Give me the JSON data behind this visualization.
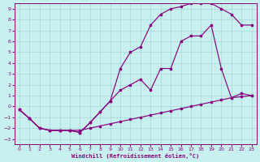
{
  "xlabel": "Windchill (Refroidissement éolien,°C)",
  "background_color": "#c8f0ee",
  "grid_color": "#a0d8d8",
  "line_color": "#880080",
  "xlim": [
    -0.5,
    23.5
  ],
  "ylim": [
    -3.5,
    9.5
  ],
  "xticks": [
    0,
    1,
    2,
    3,
    4,
    5,
    6,
    7,
    8,
    9,
    10,
    11,
    12,
    13,
    14,
    15,
    16,
    17,
    18,
    19,
    20,
    21,
    22,
    23
  ],
  "yticks": [
    -3,
    -2,
    -1,
    0,
    1,
    2,
    3,
    4,
    5,
    6,
    7,
    8,
    9
  ],
  "line1_x": [
    0,
    1,
    2,
    3,
    4,
    5,
    6,
    7,
    8,
    9,
    10,
    11,
    12,
    13,
    14,
    15,
    16,
    17,
    18,
    19,
    20,
    21,
    22,
    23
  ],
  "line1_y": [
    -0.3,
    -1.1,
    -2.0,
    -2.2,
    -2.2,
    -2.2,
    -2.2,
    -2.0,
    -1.8,
    -1.6,
    -1.4,
    -1.2,
    -1.0,
    -0.8,
    -0.6,
    -0.4,
    -0.2,
    0.0,
    0.2,
    0.4,
    0.6,
    0.8,
    0.9,
    1.0
  ],
  "line2_x": [
    0,
    1,
    2,
    3,
    4,
    5,
    6,
    7,
    8,
    9,
    10,
    11,
    12,
    13,
    14,
    15,
    16,
    17,
    18,
    19,
    20,
    21,
    22,
    23
  ],
  "line2_y": [
    -0.3,
    -1.1,
    -2.0,
    -2.2,
    -2.2,
    -2.2,
    -2.4,
    -1.5,
    -0.5,
    0.5,
    1.5,
    2.0,
    2.5,
    1.5,
    3.5,
    3.5,
    6.0,
    6.5,
    6.5,
    7.5,
    3.5,
    0.8,
    1.2,
    1.0
  ],
  "line3_x": [
    0,
    1,
    2,
    3,
    4,
    5,
    6,
    7,
    8,
    9,
    10,
    11,
    12,
    13,
    14,
    15,
    16,
    17,
    18,
    19,
    20,
    21,
    22,
    23
  ],
  "line3_y": [
    -0.3,
    -1.1,
    -2.0,
    -2.2,
    -2.2,
    -2.2,
    -2.4,
    -1.5,
    -0.5,
    0.5,
    3.5,
    5.0,
    5.5,
    7.5,
    8.5,
    9.0,
    9.2,
    9.5,
    9.5,
    9.5,
    9.0,
    8.5,
    7.5,
    7.5
  ]
}
